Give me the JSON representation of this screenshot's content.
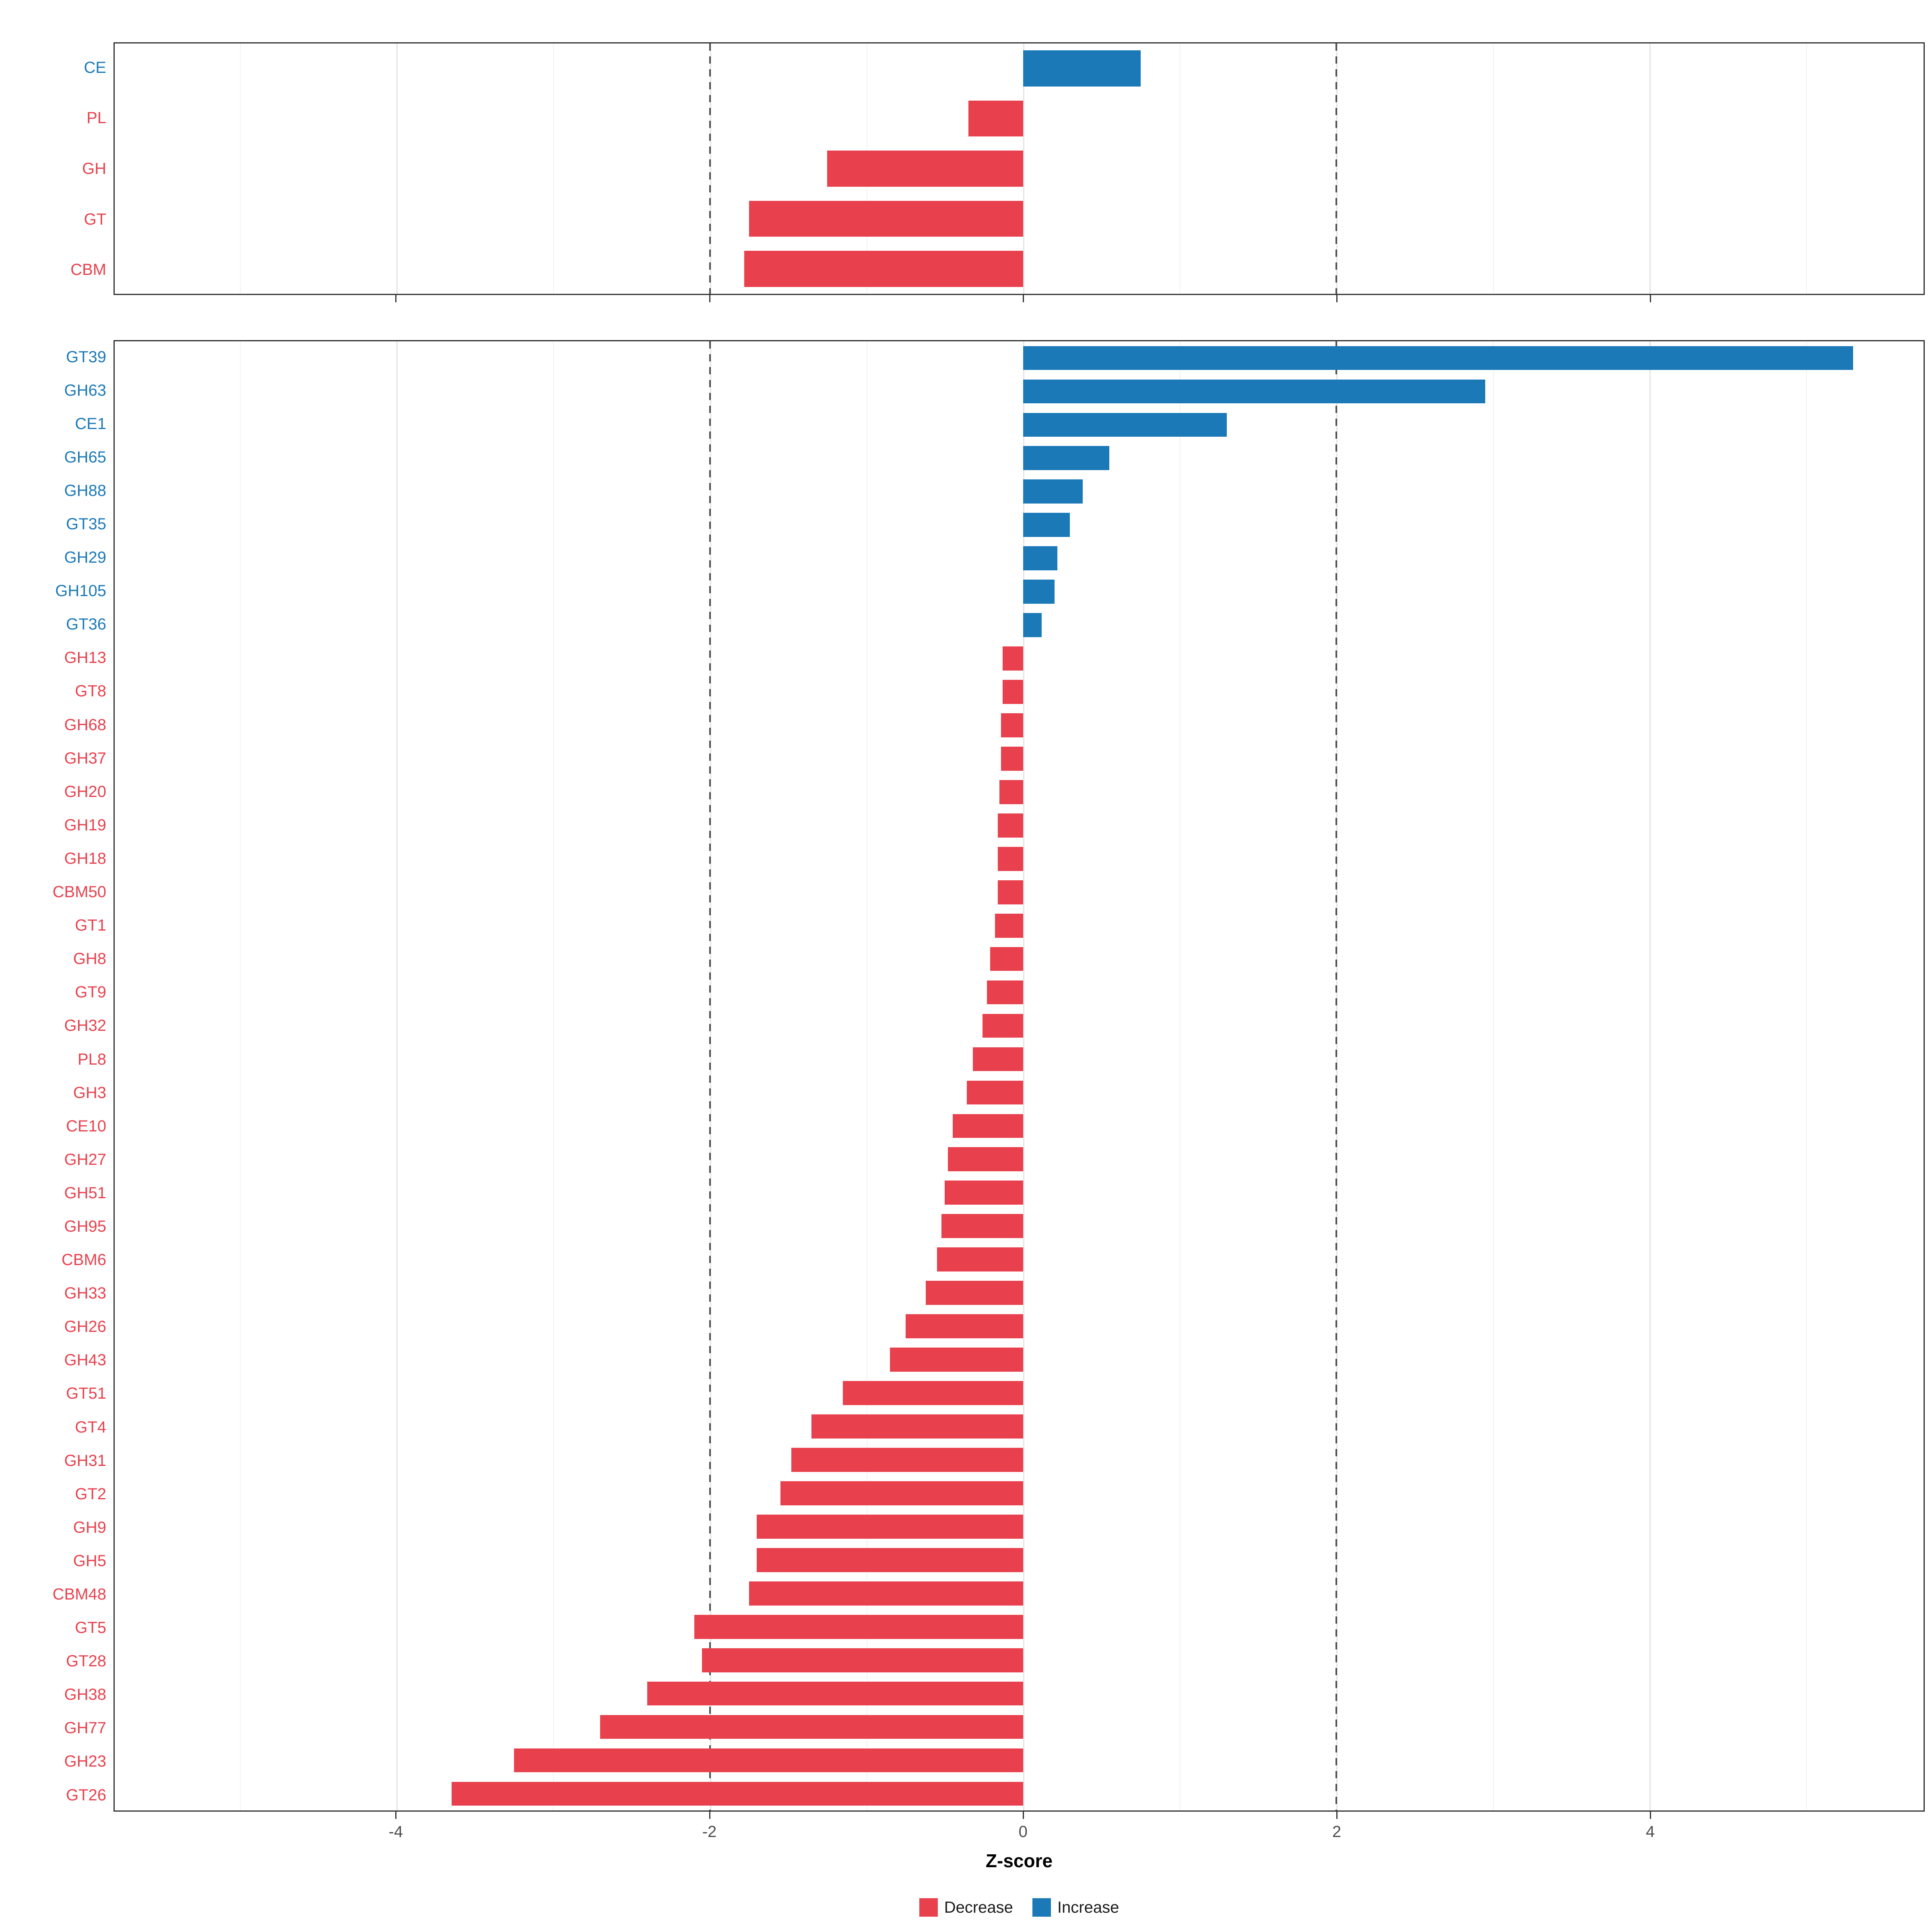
{
  "axis": {
    "min": -5.8,
    "max": 5.75,
    "ticks": [
      -4,
      -2,
      0,
      2,
      4
    ],
    "tick_labels": [
      "-4",
      "-2",
      "0",
      "2",
      "4"
    ],
    "minor_ticks": [
      -5,
      -3,
      -1,
      1,
      3,
      5
    ],
    "dashed_lines": [
      -2,
      2
    ],
    "xlabel": "Z-score"
  },
  "colors": {
    "increase": "#1B79B7",
    "decrease": "#E8414D"
  },
  "legend": {
    "items": [
      {
        "label": "Decrease",
        "color": "#E8414D"
      },
      {
        "label": "Increase",
        "color": "#1B79B7"
      }
    ]
  },
  "chart_data": [
    {
      "type": "bar",
      "orientation": "horizontal",
      "panel": "cazyme-classes",
      "title": "",
      "xlabel": "Z-score",
      "xlim": [
        -5.8,
        5.75
      ],
      "grid": true,
      "categories": [
        "CE",
        "PL",
        "GH",
        "GT",
        "CBM"
      ],
      "values": [
        0.75,
        -0.35,
        -1.25,
        -1.75,
        -1.78
      ]
    },
    {
      "type": "bar",
      "orientation": "horizontal",
      "panel": "cazyme-families",
      "title": "",
      "xlabel": "Z-score",
      "xlim": [
        -5.8,
        5.75
      ],
      "grid": true,
      "categories": [
        "GT39",
        "GH63",
        "CE1",
        "GH65",
        "GH88",
        "GT35",
        "GH29",
        "GH105",
        "GT36",
        "GH13",
        "GT8",
        "GH68",
        "GH37",
        "GH20",
        "GH19",
        "GH18",
        "CBM50",
        "GT1",
        "GH8",
        "GT9",
        "GH32",
        "PL8",
        "GH3",
        "CE10",
        "GH27",
        "GH51",
        "GH95",
        "CBM6",
        "GH33",
        "GH26",
        "GH43",
        "GT51",
        "GT4",
        "GH31",
        "GT2",
        "GH9",
        "GH5",
        "CBM48",
        "GT5",
        "GT28",
        "GH38",
        "GH77",
        "GH23",
        "GT26"
      ],
      "values": [
        5.3,
        2.95,
        1.3,
        0.55,
        0.38,
        0.3,
        0.22,
        0.2,
        0.12,
        -0.13,
        -0.13,
        -0.14,
        -0.14,
        -0.15,
        -0.16,
        -0.16,
        -0.16,
        -0.18,
        -0.21,
        -0.23,
        -0.26,
        -0.32,
        -0.36,
        -0.45,
        -0.48,
        -0.5,
        -0.52,
        -0.55,
        -0.62,
        -0.75,
        -0.85,
        -1.15,
        -1.35,
        -1.48,
        -1.55,
        -1.7,
        -1.7,
        -1.75,
        -2.1,
        -2.05,
        -2.4,
        -2.7,
        -3.25,
        -3.65
      ]
    }
  ]
}
